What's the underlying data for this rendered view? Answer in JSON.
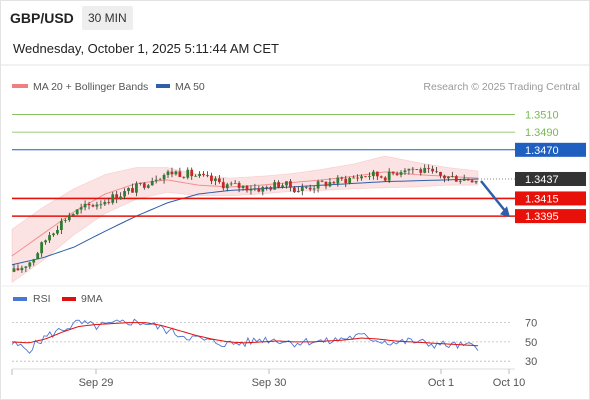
{
  "header": {
    "pair": "GBP/USD",
    "interval": "30 MIN",
    "datetime": "Wednesday, October 1, 2025 5:11:44 AM CET",
    "credit": "Research © 2025 Trading Central"
  },
  "colors": {
    "ma20": "#f08080",
    "ma50": "#2f5fa8",
    "resistance": "#79b94f",
    "pivot": "#1f5fbf",
    "support": "#e8110a",
    "bollinger_fill": "#fbd9d9",
    "candle_up": "#2e7d32",
    "candle_down": "#c62828",
    "price_label": "#333333",
    "rsi": "#4a76d4",
    "rsi_ma": "#e01010",
    "arrow": "#2f5fa8"
  },
  "chart_data": [
    {
      "type": "candlestick",
      "title": "GBP/USD",
      "legend": [
        {
          "name": "MA 20 + Bollinger Bands",
          "color": "#f08080"
        },
        {
          "name": "MA 50",
          "color": "#2f5fa8"
        }
      ],
      "y_range": [
        1.3325,
        1.3532
      ],
      "x_ticks": [
        "Sep 29",
        "Sep 30",
        "Oct 1",
        "Oct 10"
      ],
      "levels": [
        {
          "label": "1.3510",
          "value": 1.351,
          "kind": "resistance"
        },
        {
          "label": "1.3490",
          "value": 1.349,
          "kind": "resistance"
        },
        {
          "label": "1.3470",
          "value": 1.347,
          "kind": "pivot"
        },
        {
          "label": "1.3437",
          "value": 1.3437,
          "kind": "last_price"
        },
        {
          "label": "1.3415",
          "value": 1.3415,
          "kind": "support"
        },
        {
          "label": "1.3395",
          "value": 1.3395,
          "kind": "support"
        }
      ],
      "series_ma50": [
        1.334,
        1.3348,
        1.336,
        1.3378,
        1.3395,
        1.341,
        1.342,
        1.3424,
        1.3426,
        1.3428,
        1.343,
        1.3432,
        1.3434,
        1.3435,
        1.3436,
        1.3437
      ],
      "series_ma20": [
        1.335,
        1.3375,
        1.34,
        1.342,
        1.3432,
        1.3436,
        1.343,
        1.3428,
        1.343,
        1.3433,
        1.3436,
        1.344,
        1.3445,
        1.3442,
        1.344,
        1.3438
      ],
      "band_width": [
        0.003,
        0.003,
        0.0026,
        0.0022,
        0.0018,
        0.0014,
        0.0012,
        0.001,
        0.001,
        0.001,
        0.0012,
        0.0014,
        0.0018,
        0.0014,
        0.001,
        0.0008
      ],
      "price_path": [
        1.3332,
        1.3345,
        1.3375,
        1.3395,
        1.3405,
        1.3412,
        1.342,
        1.3428,
        1.344,
        1.3445,
        1.3442,
        1.3436,
        1.343,
        1.3428,
        1.3426,
        1.3432,
        1.3425,
        1.343,
        1.3434,
        1.3438,
        1.3442,
        1.344,
        1.345,
        1.3446,
        1.344,
        1.3438,
        1.3437
      ],
      "forecast_arrow": {
        "from": 1.3437,
        "to": 1.3405
      }
    },
    {
      "type": "line",
      "legend": [
        {
          "name": "RSI",
          "color": "#4a76d4"
        },
        {
          "name": "9MA",
          "color": "#e01010"
        }
      ],
      "y_range": [
        25,
        80
      ],
      "y_ticks": [
        "70",
        "50",
        "30"
      ],
      "rsi_path": [
        48,
        42,
        55,
        63,
        70,
        66,
        68,
        71,
        70,
        64,
        58,
        54,
        50,
        48,
        49,
        53,
        52,
        49,
        51,
        50,
        54,
        56,
        52,
        49,
        51,
        48,
        47,
        46,
        45
      ],
      "rsi_ma_path": [
        50,
        49,
        53,
        60,
        66,
        68,
        69,
        70,
        70,
        67,
        62,
        57,
        53,
        50,
        49,
        50,
        51,
        50,
        50,
        51,
        52,
        54,
        53,
        51,
        50,
        49,
        48,
        47,
        46
      ]
    }
  ]
}
